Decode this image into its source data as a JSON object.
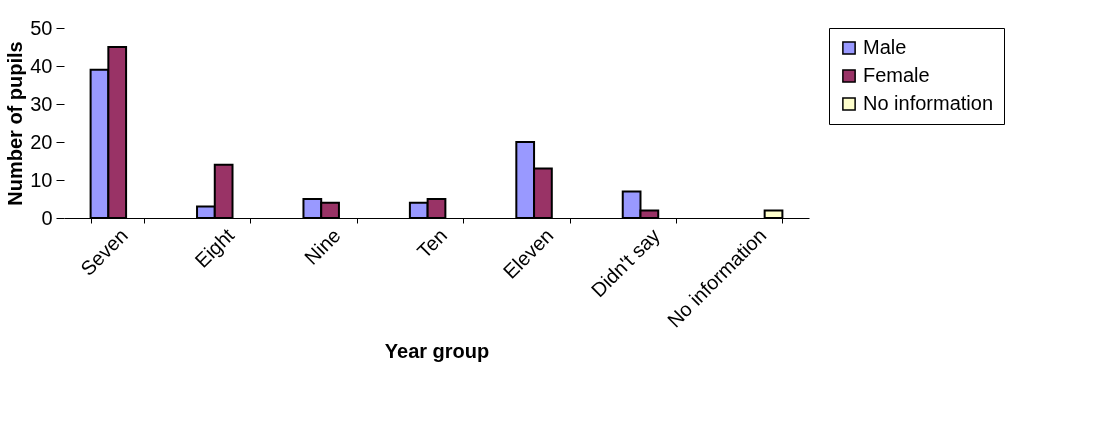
{
  "chart_data": {
    "type": "bar",
    "xlabel": "Year group",
    "ylabel": "Number of pupils",
    "categories": [
      "Seven",
      "Eight",
      "Nine",
      "Ten",
      "Eleven",
      "Didn't say",
      "No information"
    ],
    "series": [
      {
        "name": "Male",
        "color": "#9999ff",
        "values": [
          39,
          3,
          5,
          4,
          20,
          7,
          null
        ]
      },
      {
        "name": "Female",
        "color": "#993366",
        "values": [
          45,
          14,
          4,
          5,
          13,
          2,
          null
        ]
      },
      {
        "name": "No information",
        "color": "#ffffcc",
        "values": [
          null,
          null,
          null,
          null,
          null,
          null,
          2
        ]
      }
    ],
    "ylim": [
      0,
      50
    ],
    "yticks": [
      0,
      10,
      20,
      30,
      40,
      50
    ],
    "grid": false,
    "legend": "right"
  }
}
